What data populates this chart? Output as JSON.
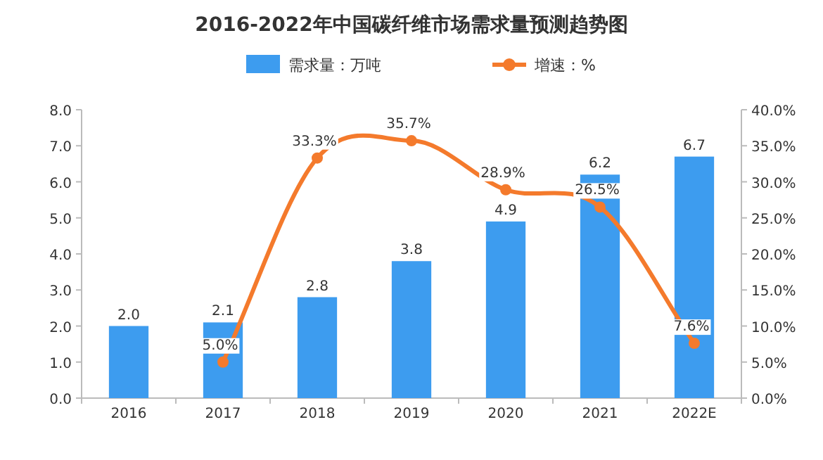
{
  "chart_data": {
    "type": "bar",
    "title": "2016-2022年中国碳纤维市场需求量预测趋势图",
    "categories": [
      "2016",
      "2017",
      "2018",
      "2019",
      "2020",
      "2021",
      "2022E"
    ],
    "series": [
      {
        "name": "需求量：万吨",
        "color": "#3d9cef",
        "values": [
          2.0,
          2.1,
          2.8,
          3.8,
          4.9,
          6.2,
          6.7
        ],
        "value_labels": [
          "2.0",
          "2.1",
          "2.8",
          "3.8",
          "4.9",
          "6.2",
          "6.7"
        ]
      },
      {
        "name": "增速：%",
        "type": "line",
        "axis": "y2",
        "color": "#f47a2c",
        "values": [
          null,
          5.0,
          33.3,
          35.7,
          28.9,
          26.5,
          7.6
        ],
        "value_labels": [
          null,
          "5.0%",
          "33.3%",
          "35.7%",
          "28.9%",
          "26.5%",
          "7.6%"
        ]
      }
    ],
    "ylim": [
      0,
      8
    ],
    "yticks": [
      {
        "value": 0,
        "label": "0.0"
      },
      {
        "value": 1,
        "label": "1.0"
      },
      {
        "value": 2,
        "label": "2.0"
      },
      {
        "value": 3,
        "label": "3.0"
      },
      {
        "value": 4,
        "label": "4.0"
      },
      {
        "value": 5,
        "label": "5.0"
      },
      {
        "value": 6,
        "label": "6.0"
      },
      {
        "value": 7,
        "label": "7.0"
      },
      {
        "value": 8,
        "label": "8.0"
      }
    ],
    "y2lim": [
      0,
      40
    ],
    "y2ticks": [
      {
        "value": 0,
        "label": "0.0%"
      },
      {
        "value": 5,
        "label": "5.0%"
      },
      {
        "value": 10,
        "label": "10.0%"
      },
      {
        "value": 15,
        "label": "15.0%"
      },
      {
        "value": 20,
        "label": "20.0%"
      },
      {
        "value": 25,
        "label": "25.0%"
      },
      {
        "value": 30,
        "label": "30.0%"
      },
      {
        "value": 35,
        "label": "35.0%"
      },
      {
        "value": 40,
        "label": "40.0%"
      }
    ],
    "marker": "circle",
    "legend": "top",
    "grid": false
  }
}
